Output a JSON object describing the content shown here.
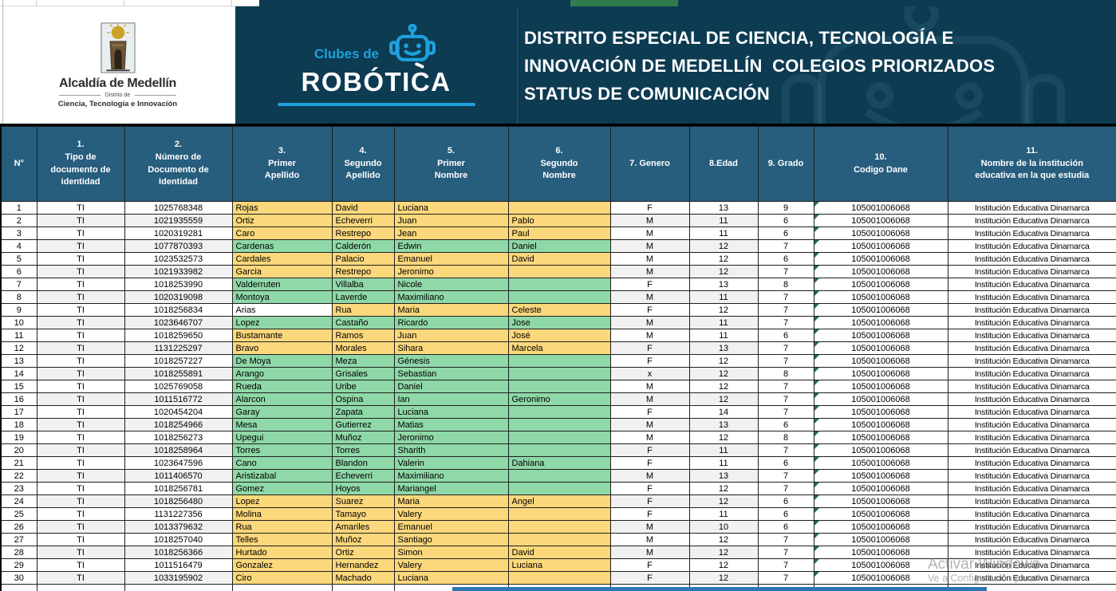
{
  "banner": {
    "alcaldia": {
      "title": "Alcaldía de Medellín",
      "subtitle": "Distrito de",
      "subtitle2": "Ciencia, Tecnología e Innovación"
    },
    "robotica": {
      "pre": "Clubes de",
      "name": "ROBÓTICA"
    },
    "title_lines": [
      "DISTRITO ESPECIAL DE CIENCIA, TECNOLOGÍA E",
      "INNOVACIÓN DE MEDELLÍN  COLEGIOS PRIORIZADOS",
      "STATUS DE COMUNICACIÓN"
    ]
  },
  "table": {
    "headers": [
      "N°",
      "1.\nTipo de\ndocumento de\nidentidad",
      "2.\nNúmero de\nDocumento de\nIdentidad",
      "3.\nPrimer\nApellido",
      "4.\nSegundo\nApellido",
      "5.\nPrimer\nNombre",
      "6.\nSegundo\nNombre",
      "7. Genero",
      "8.Edad",
      "9. Grado",
      "10.\nCodigo Dane",
      "11.\nNombre de la institución\neducativa en la que estudia"
    ],
    "rows": [
      {
        "n": "1",
        "tipo": "TI",
        "doc": "1025768348",
        "ap1": "Rojas",
        "ap2": "David",
        "nom1": "Luciana",
        "nom2": "",
        "gen": "F",
        "edad": "13",
        "grado": "9",
        "dane": "105001006068",
        "inst": "Institución Educativa Dinamarca",
        "fill": "orange"
      },
      {
        "n": "2",
        "tipo": "TI",
        "doc": "1021935559",
        "ap1": "Ortiz",
        "ap2": "Echeverri",
        "nom1": "Juan",
        "nom2": "Pablo",
        "gen": "M",
        "edad": "11",
        "grado": "6",
        "dane": "105001006068",
        "inst": "Institución Educativa Dinamarca",
        "fill": "orange"
      },
      {
        "n": "3",
        "tipo": "TI",
        "doc": "1020319281",
        "ap1": "Caro",
        "ap2": "Restrepo",
        "nom1": "Jean",
        "nom2": "Paul",
        "gen": "M",
        "edad": "11",
        "grado": "6",
        "dane": "105001006068",
        "inst": "Institución Educativa Dinamarca",
        "fill": "orange"
      },
      {
        "n": "4",
        "tipo": "TI",
        "doc": "1077870393",
        "ap1": "Cardenas",
        "ap2": "Calderón",
        "nom1": "Edwin",
        "nom2": "Daniel",
        "gen": "M",
        "edad": "12",
        "grado": "7",
        "dane": "105001006068",
        "inst": "Institución Educativa Dinamarca",
        "fill": "green"
      },
      {
        "n": "5",
        "tipo": "TI",
        "doc": "1023532573",
        "ap1": "Cardales",
        "ap2": "Palacio",
        "nom1": "Emanuel",
        "nom2": "David",
        "gen": "M",
        "edad": "12",
        "grado": "6",
        "dane": "105001006068",
        "inst": "Institución Educativa Dinamarca",
        "fill": "orange"
      },
      {
        "n": "6",
        "tipo": "TI",
        "doc": "1021933982",
        "ap1": "Garcia",
        "ap2": "Restrepo",
        "nom1": "Jeronimo",
        "nom2": "",
        "gen": "M",
        "edad": "12",
        "grado": "7",
        "dane": "105001006068",
        "inst": "Institución Educativa Dinamarca",
        "fill": "orange"
      },
      {
        "n": "7",
        "tipo": "TI",
        "doc": "1018253990",
        "ap1": "Valderruten",
        "ap2": "Villalba",
        "nom1": "Nicole",
        "nom2": "",
        "gen": "F",
        "edad": "13",
        "grado": "8",
        "dane": "105001006068",
        "inst": "Institución Educativa Dinamarca",
        "fill": "green"
      },
      {
        "n": "8",
        "tipo": "TI",
        "doc": "1020319098",
        "ap1": "Montoya",
        "ap2": "Laverde",
        "nom1": "Maximiliano",
        "nom2": "",
        "gen": "M",
        "edad": "11",
        "grado": "7",
        "dane": "105001006068",
        "inst": "Institución Educativa Dinamarca",
        "fill": "green"
      },
      {
        "n": "9",
        "tipo": "TI",
        "doc": "1018256834",
        "ap1": "Arias",
        "ap2": "Rua",
        "nom1": "Maria",
        "nom2": "Celeste",
        "gen": "F",
        "edad": "12",
        "grado": "7",
        "dane": "105001006068",
        "inst": "Institución Educativa Dinamarca",
        "fill": "orange",
        "ap1_fill": "none"
      },
      {
        "n": "10",
        "tipo": "TI",
        "doc": "1023646707",
        "ap1": "Lopez",
        "ap2": "Castaño",
        "nom1": "Ricardo",
        "nom2": "Jose",
        "gen": "M",
        "edad": "11",
        "grado": "7",
        "dane": "105001006068",
        "inst": "Institución Educativa Dinamarca",
        "fill": "green"
      },
      {
        "n": "11",
        "tipo": "TI",
        "doc": "1018259650",
        "ap1": "Bustamante",
        "ap2": "Ramos",
        "nom1": "Juan",
        "nom2": "José",
        "gen": "M",
        "edad": "11",
        "grado": "6",
        "dane": "105001006068",
        "inst": "Institución Educativa Dinamarca",
        "fill": "orange"
      },
      {
        "n": "12",
        "tipo": "TI",
        "doc": "1131225297",
        "ap1": "Bravo",
        "ap2": "Morales",
        "nom1": "Sihara",
        "nom2": "Marcela",
        "gen": "F",
        "edad": "13",
        "grado": "7",
        "dane": "105001006068",
        "inst": "Institución Educativa Dinamarca",
        "fill": "orange"
      },
      {
        "n": "13",
        "tipo": "TI",
        "doc": "1018257227",
        "ap1": "De Moya",
        "ap2": "Meza",
        "nom1": "Génesis",
        "nom2": "",
        "gen": "F",
        "edad": "12",
        "grado": "7",
        "dane": "105001006068",
        "inst": "Institución Educativa Dinamarca",
        "fill": "green"
      },
      {
        "n": "14",
        "tipo": "TI",
        "doc": "1018255891",
        "ap1": "Arango",
        "ap2": "Grisales",
        "nom1": "Sebastian",
        "nom2": "",
        "gen": "x",
        "edad": "12",
        "grado": "8",
        "dane": "105001006068",
        "inst": "Institución Educativa Dinamarca",
        "fill": "green"
      },
      {
        "n": "15",
        "tipo": "TI",
        "doc": "1025769058",
        "ap1": "Rueda",
        "ap2": "Uribe",
        "nom1": "Daniel",
        "nom2": "",
        "gen": "M",
        "edad": "12",
        "grado": "7",
        "dane": "105001006068",
        "inst": "Institución Educativa Dinamarca",
        "fill": "green"
      },
      {
        "n": "16",
        "tipo": "TI",
        "doc": "1011516772",
        "ap1": "Alarcon",
        "ap2": "Ospina",
        "nom1": "Ian",
        "nom2": "Geronimo",
        "gen": "M",
        "edad": "12",
        "grado": "7",
        "dane": "105001006068",
        "inst": "Institución Educativa Dinamarca",
        "fill": "green"
      },
      {
        "n": "17",
        "tipo": "TI",
        "doc": "1020454204",
        "ap1": "Garay",
        "ap2": "Zapata",
        "nom1": "Luciana",
        "nom2": "",
        "gen": "F",
        "edad": "14",
        "grado": "7",
        "dane": "105001006068",
        "inst": "Institución Educativa Dinamarca",
        "fill": "green"
      },
      {
        "n": "18",
        "tipo": "TI",
        "doc": "1018254966",
        "ap1": "Mesa",
        "ap2": "Gutierrez",
        "nom1": "Matias",
        "nom2": "",
        "gen": "M",
        "edad": "13",
        "grado": "6",
        "dane": "105001006068",
        "inst": "Institución Educativa Dinamarca",
        "fill": "green"
      },
      {
        "n": "19",
        "tipo": "TI",
        "doc": "1018256273",
        "ap1": "Upegui",
        "ap2": "Muñoz",
        "nom1": "Jeronimo",
        "nom2": "",
        "gen": "M",
        "edad": "12",
        "grado": "8",
        "dane": "105001006068",
        "inst": "Institución Educativa Dinamarca",
        "fill": "green"
      },
      {
        "n": "20",
        "tipo": "TI",
        "doc": "1018258964",
        "ap1": "Torres",
        "ap2": "Torres",
        "nom1": "Sharith",
        "nom2": "",
        "gen": "F",
        "edad": "11",
        "grado": "7",
        "dane": "105001006068",
        "inst": "Institución Educativa Dinamarca",
        "fill": "green"
      },
      {
        "n": "21",
        "tipo": "TI",
        "doc": "1023647596",
        "ap1": "Cano",
        "ap2": "Blandon",
        "nom1": "Valerin",
        "nom2": "Dahiana",
        "gen": "F",
        "edad": "11",
        "grado": "6",
        "dane": "105001006068",
        "inst": "Institución Educativa Dinamarca",
        "fill": "green"
      },
      {
        "n": "22",
        "tipo": "TI",
        "doc": "1011406570",
        "ap1": "Aristizabal",
        "ap2": "Echeverri",
        "nom1": "Maximiliano",
        "nom2": "",
        "gen": "M",
        "edad": "13",
        "grado": "7",
        "dane": "105001006068",
        "inst": "Institución Educativa Dinamarca",
        "fill": "green"
      },
      {
        "n": "23",
        "tipo": "TI",
        "doc": "1018256781",
        "ap1": "Gomez",
        "ap2": "Hoyos",
        "nom1": "Mariangel",
        "nom2": "",
        "gen": "F",
        "edad": "12",
        "grado": "7",
        "dane": "105001006068",
        "inst": "Institución Educativa Dinamarca",
        "fill": "green"
      },
      {
        "n": "24",
        "tipo": "TI",
        "doc": "1018256480",
        "ap1": "Lopez",
        "ap2": "Suarez",
        "nom1": "Maria",
        "nom2": "Angel",
        "gen": "F",
        "edad": "12",
        "grado": "6",
        "dane": "105001006068",
        "inst": "Institución Educativa Dinamarca",
        "fill": "orange"
      },
      {
        "n": "25",
        "tipo": "TI",
        "doc": "1131227356",
        "ap1": "Molina",
        "ap2": "Tamayo",
        "nom1": "Valery",
        "nom2": "",
        "gen": "F",
        "edad": "11",
        "grado": "6",
        "dane": "105001006068",
        "inst": "Institución Educativa Dinamarca",
        "fill": "orange"
      },
      {
        "n": "26",
        "tipo": "TI",
        "doc": "1013379632",
        "ap1": "Rua",
        "ap2": "Amariles",
        "nom1": "Emanuel",
        "nom2": "",
        "gen": "M",
        "edad": "10",
        "grado": "6",
        "dane": "105001006068",
        "inst": "Institución Educativa Dinamarca",
        "fill": "orange"
      },
      {
        "n": "27",
        "tipo": "TI",
        "doc": "1018257040",
        "ap1": "Telles",
        "ap2": "Muñoz",
        "nom1": "Santiago",
        "nom2": "",
        "gen": "M",
        "edad": "12",
        "grado": "7",
        "dane": "105001006068",
        "inst": "Institución Educativa Dinamarca",
        "fill": "orange"
      },
      {
        "n": "28",
        "tipo": "TI",
        "doc": "1018256366",
        "ap1": "Hurtado",
        "ap2": "Ortiz",
        "nom1": "Simon",
        "nom2": "David",
        "gen": "M",
        "edad": "12",
        "grado": "7",
        "dane": "105001006068",
        "inst": "Institución Educativa Dinamarca",
        "fill": "orange"
      },
      {
        "n": "29",
        "tipo": "TI",
        "doc": "1011516479",
        "ap1": "Gonzalez",
        "ap2": "Hernandez",
        "nom1": "Valery",
        "nom2": "Luciana",
        "gen": "F",
        "edad": "12",
        "grado": "7",
        "dane": "105001006068",
        "inst": "Institución Educativa Dinamarca",
        "fill": "orange"
      },
      {
        "n": "30",
        "tipo": "TI",
        "doc": "1033195902",
        "ap1": "Ciro",
        "ap2": "Machado",
        "nom1": "Luciana",
        "nom2": "",
        "gen": "F",
        "edad": "12",
        "grado": "7",
        "dane": "105001006068",
        "inst": "Institución Educativa Dinamarca",
        "fill": "orange"
      }
    ]
  },
  "watermark": {
    "line1": "Activar Windows",
    "line2": "Ve a Configuración para"
  },
  "colors": {
    "banner_bg": "#0d3b52",
    "header_bg": "#275d7d",
    "fill_orange": "#fcd87c",
    "fill_green": "#8fd8a8",
    "error_triangle_green": "#1e7145",
    "logo_blue": "#1ea0dc",
    "top_strip_green": "#2f7d4f",
    "bottom_bar_blue": "#2e75b6"
  }
}
